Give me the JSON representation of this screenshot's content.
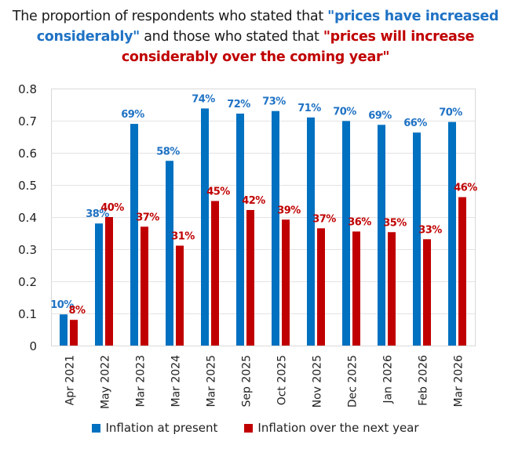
{
  "title": {
    "part1": "The proportion of respondents who stated that ",
    "highlight1": "\"prices have increased considerably\"",
    "part2": " and those who stated that ",
    "highlight2": "\"prices will increase considerably over the coming year\""
  },
  "colors": {
    "present": "#0070C0",
    "next_year": "#C00000",
    "present_label": "#1F72C4",
    "next_year_label": "#C00000",
    "grid": "#e3e3e3",
    "axis_text": "#222222"
  },
  "chart_data": {
    "type": "bar",
    "title": "The proportion of respondents who stated that \"prices have increased considerably\" and those who stated that \"prices will increase considerably over the coming year\"",
    "xlabel": "",
    "ylabel": "",
    "ylim": [
      0,
      0.8
    ],
    "yticks": [
      0,
      0.1,
      0.2,
      0.3,
      0.4,
      0.5,
      0.6,
      0.7,
      0.8
    ],
    "ytick_labels": [
      "0",
      "0.1",
      "0.2",
      "0.3",
      "0.4",
      "0.5",
      "0.6",
      "0.7",
      "0.8"
    ],
    "grid": true,
    "legend_position": "bottom",
    "categories": [
      "Apr 2021",
      "May 2022",
      "Mar 2023",
      "Mar 2024",
      "Mar 2025",
      "Sep 2025",
      "Oct 2025",
      "Nov 2025",
      "Dec 2025",
      "Jan 2026",
      "Feb 2026",
      "Mar 2026"
    ],
    "series": [
      {
        "name": "Inflation at present",
        "values": [
          0.097,
          0.38,
          0.69,
          0.575,
          0.738,
          0.722,
          0.73,
          0.71,
          0.699,
          0.687,
          0.663,
          0.696
        ],
        "labels": [
          "10%",
          "38%",
          "69%",
          "58%",
          "74%",
          "72%",
          "73%",
          "71%",
          "70%",
          "69%",
          "66%",
          "70%"
        ]
      },
      {
        "name": "Inflation over the next year",
        "values": [
          0.08,
          0.4,
          0.37,
          0.311,
          0.45,
          0.422,
          0.392,
          0.365,
          0.355,
          0.353,
          0.331,
          0.462
        ],
        "labels": [
          "8%",
          "40%",
          "37%",
          "31%",
          "45%",
          "42%",
          "39%",
          "37%",
          "36%",
          "35%",
          "33%",
          "46%"
        ]
      }
    ]
  },
  "legend": {
    "items": [
      {
        "label": "Inflation at present"
      },
      {
        "label": "Inflation over the next year"
      }
    ]
  }
}
